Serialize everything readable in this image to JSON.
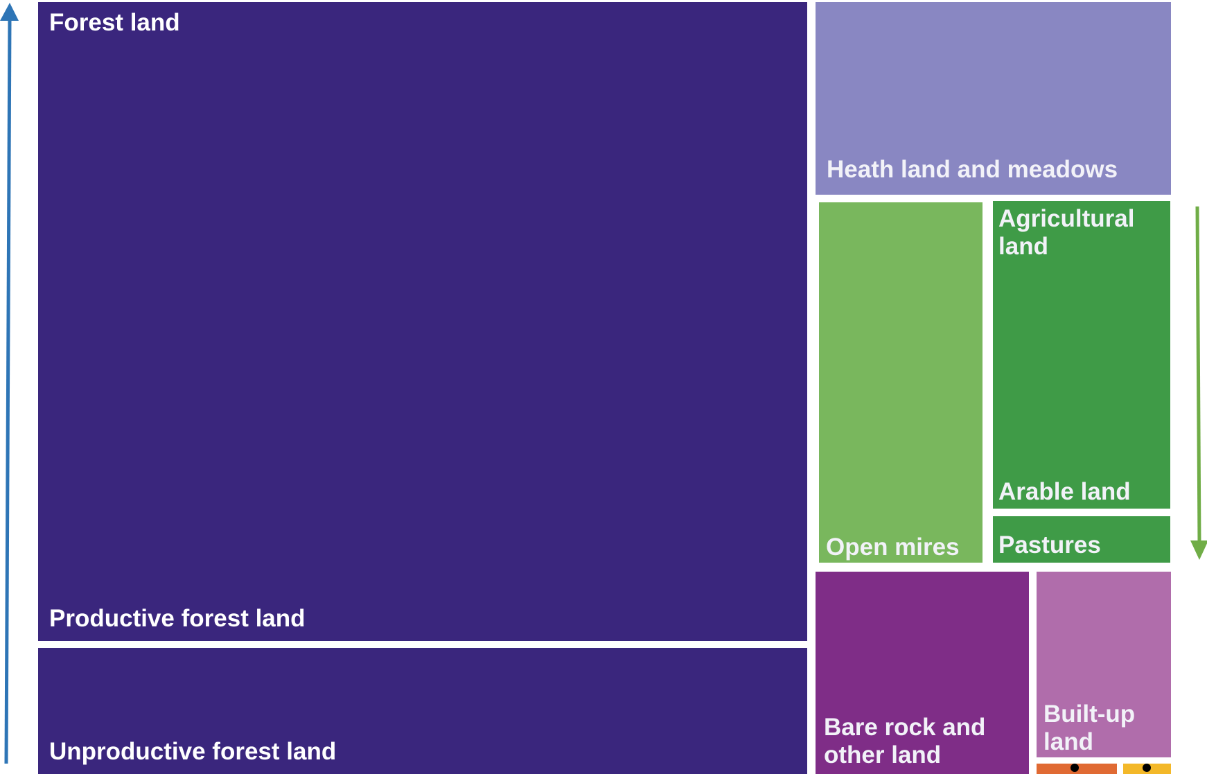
{
  "chart_data": {
    "type": "treemap",
    "title": "",
    "groups": [
      {
        "name": "Forest land",
        "color": "#3a267d",
        "children": [
          {
            "name": "Productive forest land",
            "value": 64.0,
            "color": "#3a267d"
          },
          {
            "name": "Unproductive forest land",
            "value": 14.0,
            "color": "#3a267d"
          }
        ]
      },
      {
        "name": "Heath land and meadows",
        "value": 8.6,
        "color": "#8987c2"
      },
      {
        "name": "Open mires",
        "value": 4.6,
        "color": "#79b75d"
      },
      {
        "name": "Agricultural land",
        "color": "#3f9b47",
        "children": [
          {
            "name": "Arable land",
            "value": 4.4,
            "color": "#3f9b47"
          },
          {
            "name": "Pastures",
            "value": 0.8,
            "color": "#3f9b47"
          }
        ]
      },
      {
        "name": "Bare rock and other land",
        "value": 4.0,
        "color": "#7f2d87"
      },
      {
        "name": "Built-up land",
        "value": 2.0,
        "color": "#b06dab"
      },
      {
        "name": "",
        "value": 0.4,
        "color": "#e06a33"
      },
      {
        "name": "",
        "value": 0.3,
        "color": "#f3b829"
      }
    ],
    "arrows": [
      {
        "direction": "up",
        "color": "#2e75b6"
      },
      {
        "direction": "down",
        "color": "#70ad47"
      }
    ]
  },
  "labels": {
    "forest_land": "Forest land",
    "productive": "Productive forest land",
    "unproductive": "Unproductive forest land",
    "heath": "Heath land and meadows",
    "open_mires": "Open mires",
    "agricultural": "Agricultural\nland",
    "arable": "Arable land",
    "pastures": "Pastures",
    "bare_rock": "Bare rock and\nother land",
    "built_up": "Built-up\nland"
  }
}
